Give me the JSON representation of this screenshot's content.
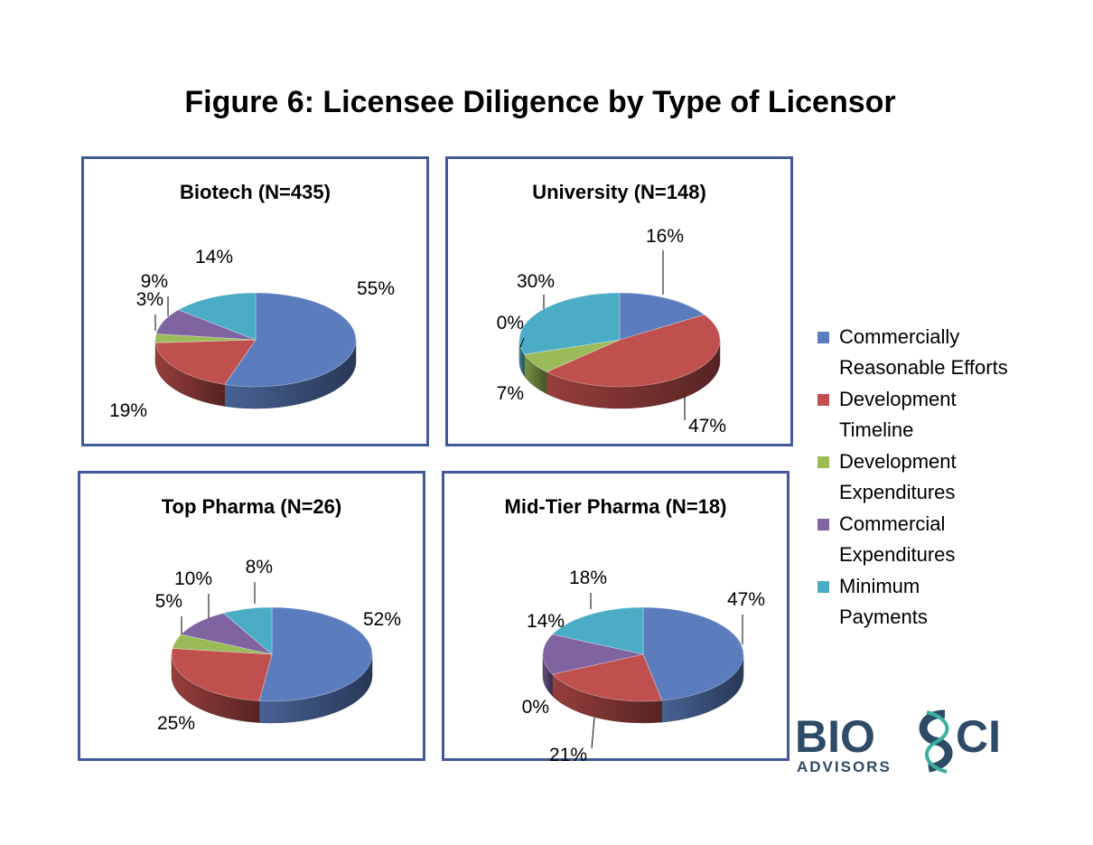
{
  "title": "Figure 6:  Licensee Diligence by Type of Licensor",
  "colors": {
    "panel_border": "#3F5A96",
    "series": [
      "#5B7DBE",
      "#C0504D",
      "#9BBB59",
      "#8064A2",
      "#4BACC6"
    ]
  },
  "legend": [
    {
      "label": "Commercially\nReasonable Efforts",
      "color": "#5B7DBE"
    },
    {
      "label": "Development\nTimeline",
      "color": "#C0504D"
    },
    {
      "label": "Development\nExpenditures",
      "color": "#9BBB59"
    },
    {
      "label": "Commercial\nExpenditures",
      "color": "#8064A2"
    },
    {
      "label": "Minimum\nPayments",
      "color": "#4BACC6"
    }
  ],
  "chart_data": [
    {
      "type": "pie",
      "title": "Biotech (N=435)",
      "categories": [
        "Commercially Reasonable Efforts",
        "Development Timeline",
        "Development Expenditures",
        "Commercial Expenditures",
        "Minimum Payments"
      ],
      "values": [
        55,
        19,
        3,
        9,
        14
      ],
      "labels": [
        "55%",
        "19%",
        "3%",
        "9%",
        "14%"
      ]
    },
    {
      "type": "pie",
      "title": "University (N=148)",
      "categories": [
        "Commercially Reasonable Efforts",
        "Development Timeline",
        "Development Expenditures",
        "Commercial Expenditures",
        "Minimum Payments"
      ],
      "values": [
        16,
        47,
        7,
        0,
        30
      ],
      "labels": [
        "16%",
        "47%",
        "7%",
        "0%",
        "30%"
      ]
    },
    {
      "type": "pie",
      "title": "Top Pharma (N=26)",
      "categories": [
        "Commercially Reasonable Efforts",
        "Development Timeline",
        "Development Expenditures",
        "Commercial Expenditures",
        "Minimum Payments"
      ],
      "values": [
        52,
        25,
        5,
        10,
        8
      ],
      "labels": [
        "52%",
        "25%",
        "5%",
        "10%",
        "8%"
      ]
    },
    {
      "type": "pie",
      "title": "Mid-Tier Pharma (N=18)",
      "categories": [
        "Commercially Reasonable Efforts",
        "Development Timeline",
        "Development Expenditures",
        "Commercial Expenditures",
        "Minimum Payments"
      ],
      "values": [
        47,
        21,
        0,
        14,
        18
      ],
      "labels": [
        "47%",
        "21%",
        "0%",
        "14%",
        "18%"
      ]
    }
  ],
  "logo": {
    "text_main_left": "BIO",
    "text_main_right": "CI",
    "text_sub": "ADVISORS",
    "color": "#2E4A66",
    "accent": "#3AB09E"
  }
}
